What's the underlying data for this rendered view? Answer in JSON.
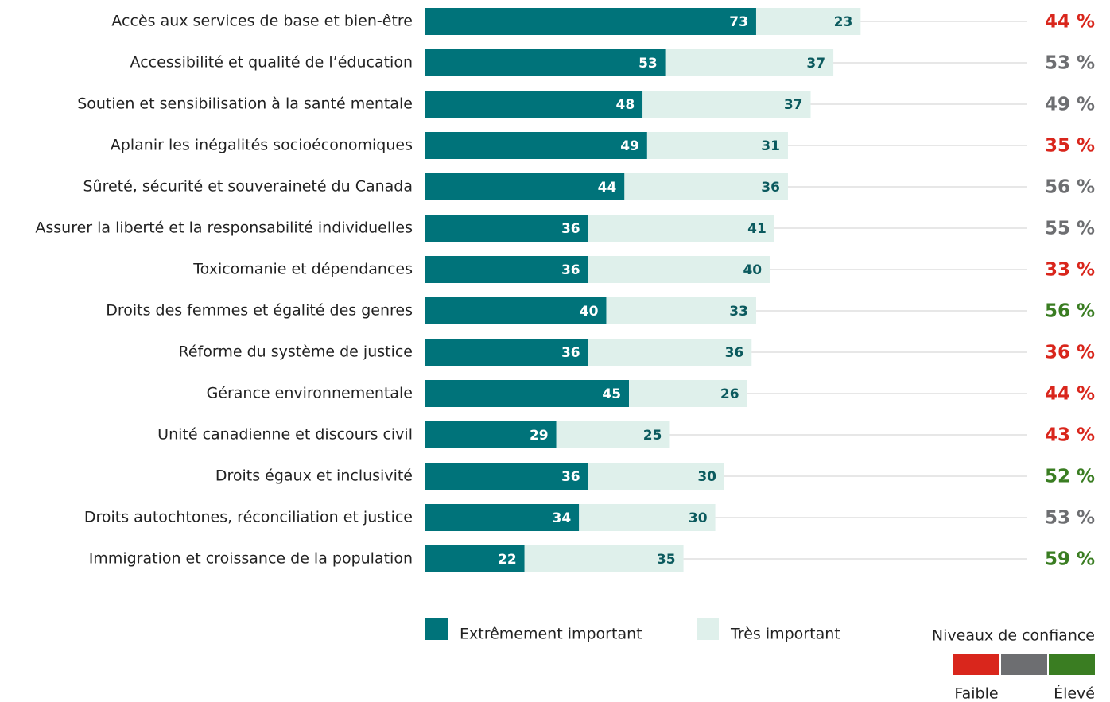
{
  "chart_data": {
    "type": "stacked_bar_horizontal",
    "categories": [
      "Accès aux services de base et bien-être",
      "Accessibilité et qualité de l’éducation",
      "Soutien et sensibilisation à la santé mentale",
      "Aplanir les inégalités socioéconomiques",
      "Sûreté, sécurité et souveraineté du Canada",
      "Assurer la liberté et la responsabilité individuelles",
      "Toxicomanie et dépendances",
      "Droits des femmes et égalité des genres",
      "Réforme du système de justice",
      "Gérance environnementale",
      "Unité canadienne et discours civil",
      "Droits égaux et inclusivité",
      "Droits autochtones, réconciliation et justice",
      "Immigration et croissance de la population"
    ],
    "series": [
      {
        "name": "Extrêmement important",
        "color": "#00737a",
        "label_color": "#ffffff",
        "values": [
          73,
          53,
          48,
          49,
          44,
          36,
          36,
          40,
          36,
          45,
          29,
          36,
          34,
          22
        ]
      },
      {
        "name": "Très important",
        "color": "#dff0eb",
        "label_color": "#0b5a5e",
        "values": [
          23,
          37,
          37,
          31,
          36,
          41,
          40,
          33,
          36,
          26,
          25,
          30,
          30,
          35
        ]
      }
    ],
    "confidence": {
      "values": [
        44,
        53,
        49,
        35,
        56,
        55,
        33,
        56,
        36,
        44,
        43,
        52,
        53,
        59
      ],
      "value_labels": [
        "44 %",
        "53 %",
        "49 %",
        "35 %",
        "56 %",
        "55 %",
        "33 %",
        "56 %",
        "36 %",
        "44 %",
        "43 %",
        "52 %",
        "53 %",
        "59 %"
      ],
      "colors": [
        "#d9261c",
        "#6d6e71",
        "#6d6e71",
        "#d9261c",
        "#6d6e71",
        "#6d6e71",
        "#d9261c",
        "#3a7d22",
        "#d9261c",
        "#d9261c",
        "#d9261c",
        "#3a7d22",
        "#6d6e71",
        "#3a7d22"
      ]
    },
    "confidence_legend": {
      "title": "Niveaux de confiance",
      "colors": [
        "#d9261c",
        "#6d6e71",
        "#3a7d22"
      ],
      "labels": [
        "Faible",
        "Élevé"
      ]
    }
  }
}
